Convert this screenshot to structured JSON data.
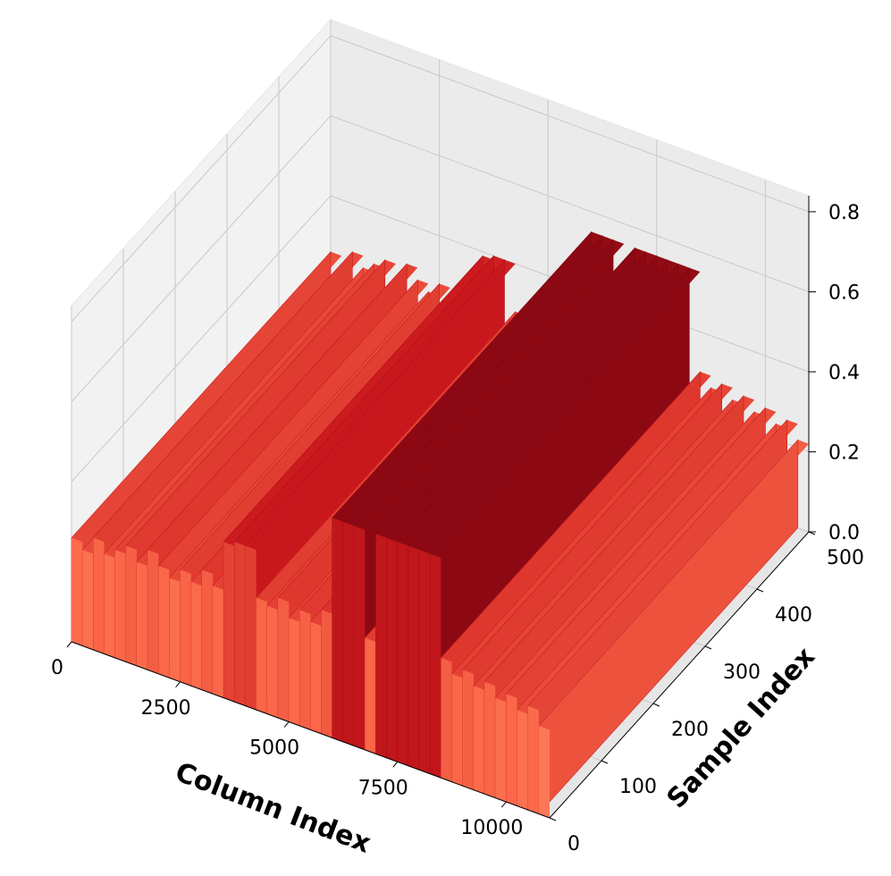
{
  "chart_data": {
    "type": "surface3d",
    "xlabel": "Column Index",
    "ylabel": "Sample Index",
    "cmap": "Reds",
    "xlim": [
      0,
      11000
    ],
    "ylim": [
      0,
      500
    ],
    "zlim": [
      0,
      0.84
    ],
    "xticks": [
      0,
      2500,
      5000,
      7500,
      10000
    ],
    "yticks": [
      0,
      100,
      200,
      300,
      400,
      500
    ],
    "zticks": [
      {
        "value": 0,
        "label": "0.0"
      },
      0.2,
      0.4,
      0.6,
      0.8
    ],
    "grid": true,
    "x": [
      0,
      250,
      500,
      750,
      1000,
      1250,
      1500,
      1750,
      2000,
      2250,
      2500,
      2750,
      3000,
      3250,
      3500,
      3750,
      4000,
      4250,
      4500,
      4750,
      5000,
      5250,
      5500,
      5750,
      6000,
      6250,
      6500,
      6750,
      7000,
      7250,
      7500,
      7750,
      8000,
      8250,
      8500,
      8750,
      9000,
      9250,
      9500,
      9750,
      10000,
      10250,
      10500,
      10750
    ],
    "values": [
      0.26,
      0.24,
      0.28,
      0.25,
      0.27,
      0.29,
      0.26,
      0.3,
      0.27,
      0.25,
      0.28,
      0.26,
      0.3,
      0.27,
      0.39,
      0.4,
      0.4,
      0.28,
      0.27,
      0.3,
      0.26,
      0.29,
      0.27,
      0.31,
      0.55,
      0.55,
      0.55,
      0.28,
      0.55,
      0.55,
      0.55,
      0.55,
      0.55,
      0.55,
      0.3,
      0.27,
      0.29,
      0.26,
      0.28,
      0.25,
      0.27,
      0.24,
      0.26,
      0.22
    ]
  }
}
